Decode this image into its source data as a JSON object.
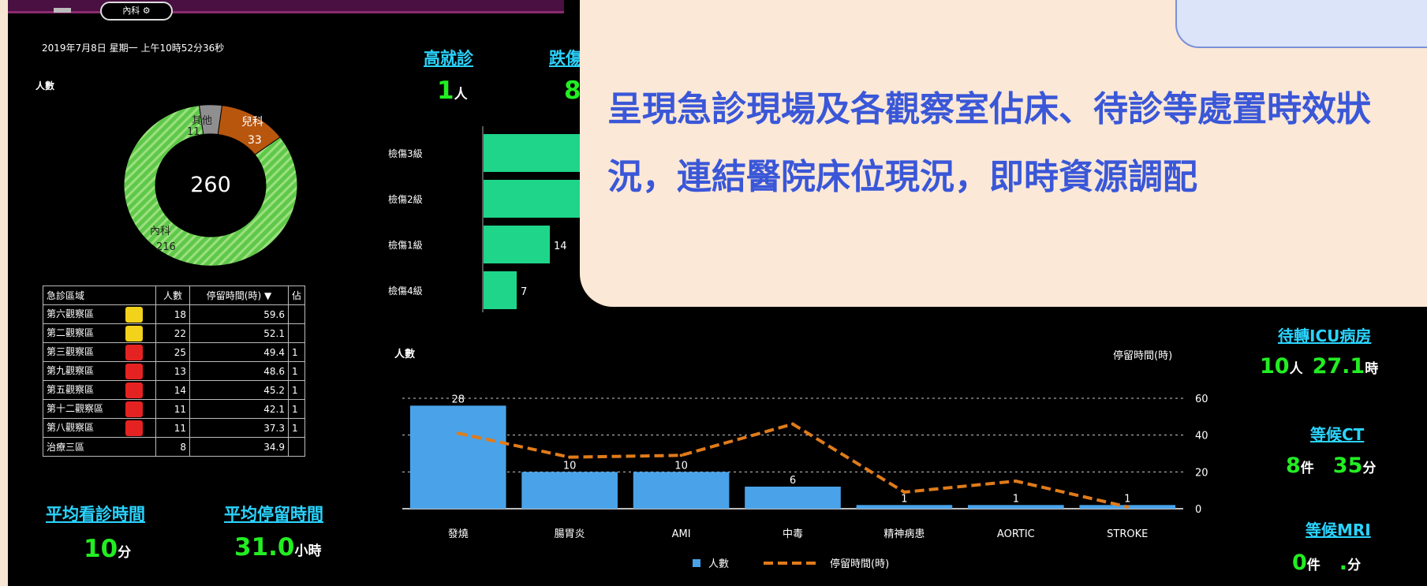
{
  "header": {
    "dept_pill": "內科 ⚙"
  },
  "datetime": "2019年7月8日 星期一 上午10時52分36秒",
  "donut": {
    "label": "人數",
    "total": "260",
    "segments": [
      {
        "name": "內科",
        "value": 216,
        "label_name": "內科",
        "label_value": "216",
        "color": "#5fc84a"
      },
      {
        "name": "兒科",
        "value": 33,
        "label_name": "兒科",
        "label_value": "33",
        "color": "#b8560e"
      },
      {
        "name": "其他",
        "value": 11,
        "label_name": "其他",
        "label_value": "11",
        "color": "#8f8f8f"
      }
    ]
  },
  "obs_table": {
    "headers": [
      "急診區域",
      "人數",
      "停留時間(時) ▼",
      "佔"
    ],
    "rows": [
      {
        "area": "第六觀察區",
        "status": "#f2d21a",
        "count": "18",
        "hours": "59.6",
        "extra": ""
      },
      {
        "area": "第二觀察區",
        "status": "#f2d21a",
        "count": "22",
        "hours": "52.1",
        "extra": ""
      },
      {
        "area": "第三觀察區",
        "status": "#e52222",
        "count": "25",
        "hours": "49.4",
        "extra": "1"
      },
      {
        "area": "第九觀察區",
        "status": "#e52222",
        "count": "13",
        "hours": "48.6",
        "extra": "1"
      },
      {
        "area": "第五觀察區",
        "status": "#e52222",
        "count": "14",
        "hours": "45.2",
        "extra": "1"
      },
      {
        "area": "第十二觀察區",
        "status": "#e52222",
        "count": "11",
        "hours": "42.1",
        "extra": "1"
      },
      {
        "area": "第八觀察區",
        "status": "#e52222",
        "count": "11",
        "hours": "37.3",
        "extra": "1"
      },
      {
        "area": "治療三區",
        "status": "",
        "count": "8",
        "hours": "34.9",
        "extra": ""
      }
    ]
  },
  "avg_visit": {
    "label": "平均看診時間",
    "value": "10",
    "unit": "分"
  },
  "avg_stay": {
    "label": "平均停留時間",
    "value": "31.0",
    "unit": "小時"
  },
  "high_visit": {
    "label": "高就診",
    "value": "1",
    "unit": "人"
  },
  "fall": {
    "label": "跌傷",
    "value": "8"
  },
  "triage_chart": {
    "type": "bar",
    "categories": [
      "檢傷3級",
      "檢傷2級",
      "檢傷1級",
      "檢傷4級"
    ],
    "values": [
      null,
      null,
      14,
      7
    ],
    "value_labels": [
      "",
      "",
      "14",
      "7"
    ],
    "xlabel": "人數"
  },
  "right_stats": {
    "icu": {
      "label": "待轉ICU病房",
      "count": "10",
      "count_unit": "人",
      "time": "27.1",
      "time_unit": "時"
    },
    "ct": {
      "label": "等候CT",
      "count": "8",
      "count_unit": "件",
      "time": "35",
      "time_unit": "分"
    },
    "mri": {
      "label": "等候MRI",
      "count": "0",
      "count_unit": "件",
      "time": ".",
      "time_unit": "分"
    }
  },
  "chart_data": {
    "type": "bar",
    "categories": [
      "發燒",
      "腸胃炎",
      "AMI",
      "中毒",
      "精神病患",
      "AORTIC",
      "STROKE"
    ],
    "series": [
      {
        "name": "人數",
        "type": "bar",
        "values": [
          28,
          10,
          10,
          6,
          1,
          1,
          1
        ],
        "color": "#4aa3e8"
      },
      {
        "name": "停留時間(時)",
        "type": "line",
        "values": [
          41,
          28,
          29,
          46,
          9,
          15,
          1
        ],
        "color": "#e07b1a"
      }
    ],
    "ylabel_left": "人數",
    "ylabel_right": "停留時間(時)",
    "y_right_ticks": [
      "60",
      "40",
      "20",
      "0"
    ],
    "ylim_right": [
      0,
      60
    ],
    "ylim_left": [
      0,
      30
    ],
    "legend": "bottom"
  },
  "callout": {
    "text": "呈現急診現場及各觀察室佔床、待診等處置時效狀況，連結醫院床位現況，即時資源調配"
  }
}
